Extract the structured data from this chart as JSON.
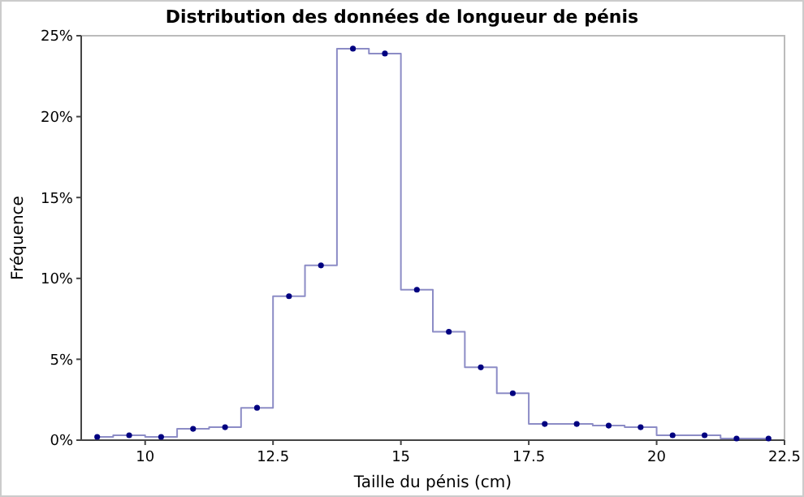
{
  "chart_data": {
    "type": "step",
    "title": "Distribution des données de longueur de pénis",
    "xlabel": "Taille du pénis (cm)",
    "ylabel": "Fréquence",
    "x": [
      9.0625,
      9.6875,
      10.3125,
      10.9375,
      11.5625,
      12.1875,
      12.8125,
      13.4375,
      14.0625,
      14.6875,
      15.3125,
      15.9375,
      16.5625,
      17.1875,
      17.8125,
      18.4375,
      19.0625,
      19.6875,
      20.3125,
      20.9375,
      21.5625,
      22.1875
    ],
    "series": [
      {
        "color": "#000080",
        "values": [
          0.2,
          0.3,
          0.2,
          0.7,
          0.8,
          2.0,
          8.9,
          10.8,
          24.2,
          23.9,
          9.3,
          6.7,
          4.5,
          2.9,
          1.0,
          1.0,
          0.9,
          0.8,
          0.3,
          0.3,
          0.1,
          0.1
        ]
      }
    ],
    "xlim": [
      8.75,
      22.5
    ],
    "xticks": [
      10,
      12.5,
      15,
      17.5,
      20,
      22.5
    ],
    "ylim": [
      0,
      25
    ],
    "yticks": [
      {
        "value": 0,
        "label": "0%"
      },
      {
        "value": 5,
        "label": "5%"
      },
      {
        "value": 10,
        "label": "10%"
      },
      {
        "value": 15,
        "label": "15%"
      },
      {
        "value": 20,
        "label": "20%"
      },
      {
        "value": 25,
        "label": "25%"
      }
    ],
    "marker": "circle",
    "grid": false
  }
}
